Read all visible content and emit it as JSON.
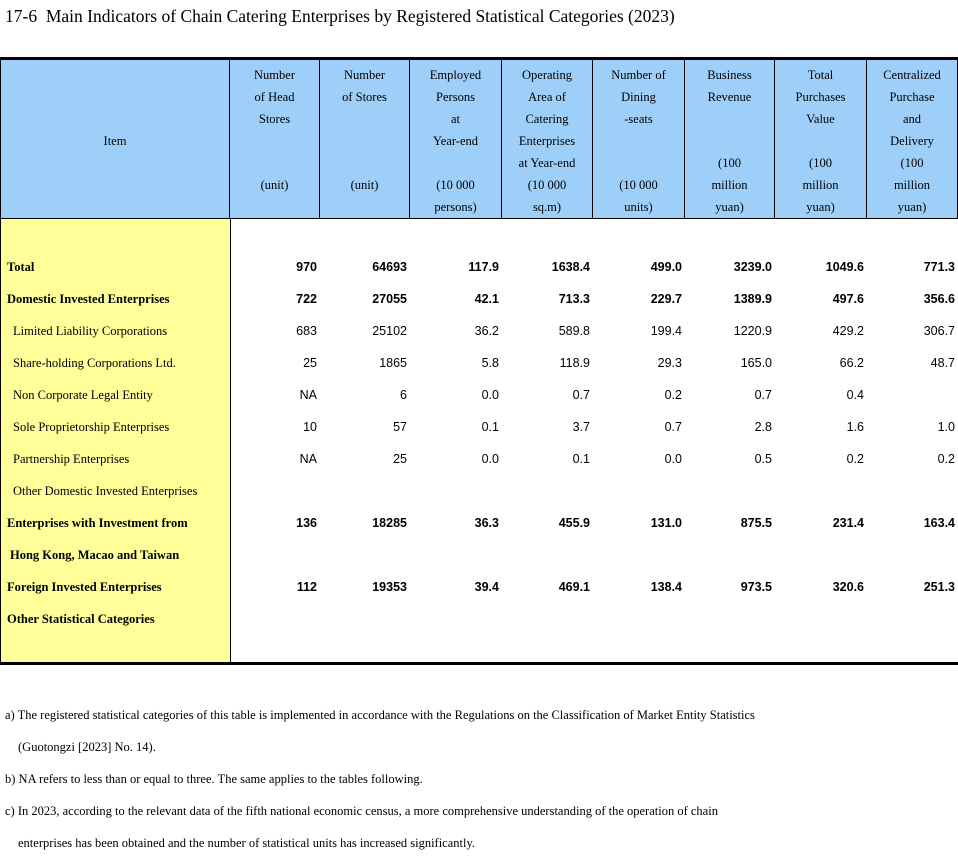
{
  "title": "17-6  Main Indicators of Chain Catering Enterprises by Registered Statistical Categories (2023)",
  "colors": {
    "header_bg": "#9ECFF8",
    "item_bg": "#FFFF99",
    "border": "#000000"
  },
  "table": {
    "columns": [
      {
        "id": "item",
        "lines": [
          "",
          "",
          "",
          "Item",
          "",
          "",
          ""
        ]
      },
      {
        "id": "head-stores",
        "lines": [
          "Number",
          "of Head",
          "Stores",
          "",
          "",
          "(unit)",
          ""
        ]
      },
      {
        "id": "stores",
        "lines": [
          "Number",
          "of Stores",
          "",
          "",
          "",
          "(unit)",
          ""
        ]
      },
      {
        "id": "employed-persons",
        "lines": [
          "Employed",
          "Persons",
          "at",
          "Year-end",
          "",
          "(10 000",
          "persons)"
        ]
      },
      {
        "id": "operating-area",
        "lines": [
          "Operating",
          "Area of",
          "Catering",
          "Enterprises",
          "at Year-end",
          "(10 000",
          "sq.m)"
        ]
      },
      {
        "id": "dining-seats",
        "lines": [
          "Number of",
          "Dining",
          "-seats",
          "",
          "",
          "(10 000",
          "units)"
        ]
      },
      {
        "id": "business-revenue",
        "lines": [
          "Business",
          "Revenue",
          "",
          "",
          "(100",
          "million",
          "yuan)"
        ]
      },
      {
        "id": "total-purchases",
        "lines": [
          "Total",
          "Purchases",
          "Value",
          "",
          "(100",
          "million",
          "yuan)"
        ]
      },
      {
        "id": "centralized-purchase",
        "lines": [
          "Centralized",
          "Purchase",
          "and",
          "Delivery",
          "(100",
          "million",
          "yuan)"
        ]
      }
    ],
    "rows": [
      {
        "label": "Total",
        "bold": true,
        "indent": 0,
        "values": [
          "970",
          "64693",
          "117.9",
          "1638.4",
          "499.0",
          "3239.0",
          "1049.6",
          "771.3"
        ]
      },
      {
        "label": "Domestic Invested Enterprises",
        "bold": true,
        "indent": 0,
        "values": [
          "722",
          "27055",
          "42.1",
          "713.3",
          "229.7",
          "1389.9",
          "497.6",
          "356.6"
        ]
      },
      {
        "label": "Limited Liability Corporations",
        "bold": false,
        "indent": 2,
        "values": [
          "683",
          "25102",
          "36.2",
          "589.8",
          "199.4",
          "1220.9",
          "429.2",
          "306.7"
        ]
      },
      {
        "label": "Share-holding Corporations Ltd.",
        "bold": false,
        "indent": 2,
        "values": [
          "25",
          "1865",
          "5.8",
          "118.9",
          "29.3",
          "165.0",
          "66.2",
          "48.7"
        ]
      },
      {
        "label": "Non Corporate Legal Entity",
        "bold": false,
        "indent": 2,
        "values": [
          "NA",
          "6",
          "0.0",
          "0.7",
          "0.2",
          "0.7",
          "0.4",
          ""
        ]
      },
      {
        "label": "Sole Proprietorship Enterprises",
        "bold": false,
        "indent": 2,
        "values": [
          "10",
          "57",
          "0.1",
          "3.7",
          "0.7",
          "2.8",
          "1.6",
          "1.0"
        ]
      },
      {
        "label": "Partnership Enterprises",
        "bold": false,
        "indent": 2,
        "values": [
          "NA",
          "25",
          "0.0",
          "0.1",
          "0.0",
          "0.5",
          "0.2",
          "0.2"
        ]
      },
      {
        "label": "Other Domestic Invested Enterprises",
        "bold": false,
        "indent": 2,
        "values": [
          "",
          "",
          "",
          "",
          "",
          "",
          "",
          ""
        ]
      },
      {
        "label": "Enterprises with Investment from",
        "bold": true,
        "indent": 0,
        "values": [
          "136",
          "18285",
          "36.3",
          "455.9",
          "131.0",
          "875.5",
          "231.4",
          "163.4"
        ]
      },
      {
        "label": "Hong Kong, Macao and Taiwan",
        "bold": true,
        "indent": 1,
        "values": [
          "",
          "",
          "",
          "",
          "",
          "",
          "",
          ""
        ]
      },
      {
        "label": "Foreign Invested Enterprises",
        "bold": true,
        "indent": 0,
        "values": [
          "112",
          "19353",
          "39.4",
          "469.1",
          "138.4",
          "973.5",
          "320.6",
          "251.3"
        ]
      },
      {
        "label": "Other Statistical Categories",
        "bold": true,
        "indent": 0,
        "values": [
          "",
          "",
          "",
          "",
          "",
          "",
          "",
          ""
        ]
      }
    ]
  },
  "footnotes": [
    {
      "indent": 0,
      "text": "a) The registered statistical categories of this table is implemented in accordance with the Regulations on the Classification of Market Entity Statistics"
    },
    {
      "indent": 1,
      "text": "(Guotongzi [2023] No. 14)."
    },
    {
      "indent": 0,
      "text": "b) NA refers to less than or equal to three. The same applies to the tables following."
    },
    {
      "indent": 0,
      "text": "c) In 2023, according to the relevant data of the fifth national economic census, a more comprehensive understanding of the operation of chain"
    },
    {
      "indent": 1,
      "text": "enterprises has been obtained and the number of statistical units has increased significantly."
    }
  ]
}
